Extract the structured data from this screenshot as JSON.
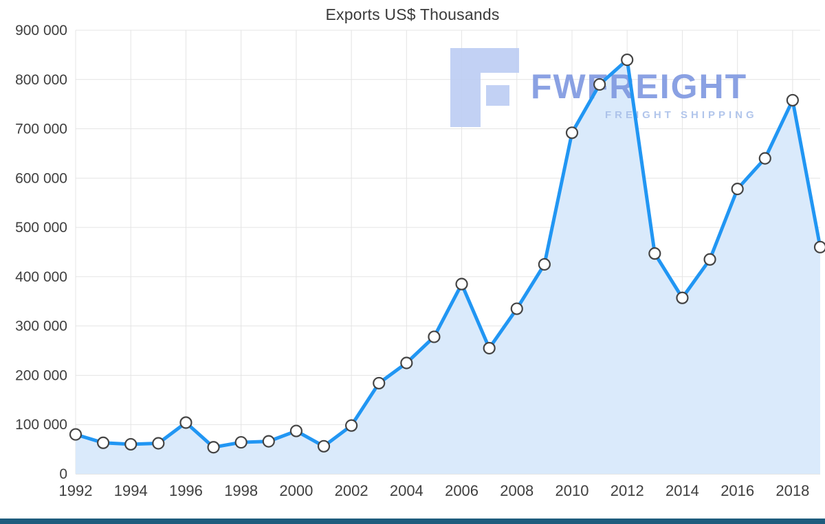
{
  "page": {
    "background": "#ffffff"
  },
  "chart_data": {
    "type": "area",
    "title": "Exports US$ Thousands",
    "x": [
      1992,
      1993,
      1994,
      1995,
      1996,
      1997,
      1998,
      1999,
      2000,
      2001,
      2002,
      2003,
      2004,
      2005,
      2006,
      2007,
      2008,
      2009,
      2010,
      2011,
      2012,
      2013,
      2014,
      2015,
      2016,
      2017,
      2018,
      2019
    ],
    "values": [
      80000,
      63000,
      60000,
      62000,
      104000,
      54000,
      64000,
      66000,
      87000,
      56000,
      98000,
      184000,
      225000,
      278000,
      385000,
      255000,
      335000,
      425000,
      692000,
      790000,
      840000,
      447000,
      357000,
      435000,
      578000,
      640000,
      758000,
      460000
    ],
    "xticks": [
      1992,
      1994,
      1996,
      1998,
      2000,
      2002,
      2004,
      2006,
      2008,
      2010,
      2012,
      2014,
      2016,
      2018
    ],
    "xtick_labels": [
      "1992",
      "1994",
      "1996",
      "1998",
      "2000",
      "2002",
      "2004",
      "2006",
      "2008",
      "2010",
      "2012",
      "2014",
      "2016",
      "2018"
    ],
    "yticks": [
      0,
      100000,
      200000,
      300000,
      400000,
      500000,
      600000,
      700000,
      800000,
      900000
    ],
    "ytick_labels": [
      "0",
      "100 000",
      "200 000",
      "300 000",
      "400 000",
      "500 000",
      "600 000",
      "700 000",
      "800 000",
      "900 000"
    ],
    "ylim": [
      0,
      900000
    ],
    "xlabel": "",
    "ylabel": "",
    "grid": true,
    "legend": "none",
    "colors": {
      "line": "#2196f3",
      "fill": "#daeafb",
      "marker_fill": "#ffffff",
      "marker_stroke": "#444444",
      "grid": "#e4e4e4",
      "tick_text": "#3f3f3f",
      "title_text": "#3a3a3a"
    }
  },
  "watermark": {
    "brand": "FWFREIGHT",
    "subtitle": "FREIGHT SHIPPING",
    "brand_color": "#7e97e0",
    "subtitle_color": "#a9bfe9",
    "logo_color": "#bccdf3"
  },
  "footer": {
    "color": "#1e5c7d"
  }
}
